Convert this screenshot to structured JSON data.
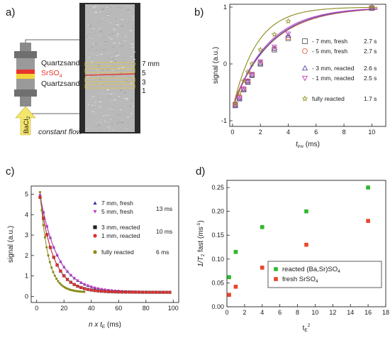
{
  "panel_a": {
    "letter": "a)",
    "top_label": "Quartzsand",
    "middle_label": "SrSO",
    "middle_sub": "4",
    "bottom_label": "Quartzsand",
    "flow_reagent": "BaCl",
    "flow_reagent_sub": "2",
    "flow_label": "constant flow",
    "depth_labels": [
      "7 mm",
      "5",
      "3",
      "1"
    ],
    "colors": {
      "srso4": "#e8352b",
      "yellow": "#f1d53a",
      "arrow": "#f3e66a",
      "pipe": "#8a8a8a"
    }
  },
  "chart_data": [
    {
      "panel": "b)",
      "type": "line",
      "xlabel": "t",
      "xlabel_sub": "inv",
      "xlabel_unit": " (ms)",
      "ylabel": "signal (a.u.)",
      "xlim": [
        -0.2,
        11
      ],
      "ylim": [
        -1.1,
        1.05
      ],
      "xticks": [
        0,
        2,
        4,
        6,
        8,
        10
      ],
      "yticks": [
        -1,
        0,
        1
      ],
      "series": [
        {
          "name": "- 7 mm, fresh",
          "tau": "2.7 s",
          "marker": "square",
          "color": "#555555",
          "fit": {
            "T": 2.7,
            "A": 1.75,
            "B": 1.0
          },
          "points": [
            [
              0.2,
              -0.72
            ],
            [
              0.5,
              -0.6
            ],
            [
              0.8,
              -0.45
            ],
            [
              1.1,
              -0.32
            ],
            [
              1.4,
              -0.2
            ],
            [
              2.0,
              0.0
            ],
            [
              3.0,
              0.25
            ],
            [
              4.0,
              0.45
            ],
            [
              10.0,
              0.98
            ]
          ]
        },
        {
          "name": "- 5 mm, fresh",
          "tau": "2.7 s",
          "marker": "circle",
          "color": "#e0603a",
          "fit": {
            "T": 2.7,
            "A": 1.73,
            "B": 1.0
          },
          "points": [
            [
              0.2,
              -0.7
            ],
            [
              0.5,
              -0.58
            ],
            [
              0.8,
              -0.44
            ],
            [
              1.1,
              -0.3
            ],
            [
              1.4,
              -0.19
            ],
            [
              2.0,
              0.02
            ],
            [
              3.0,
              0.27
            ],
            [
              4.0,
              0.47
            ],
            [
              10.0,
              0.99
            ]
          ]
        },
        {
          "name": "- 3 mm, reacted",
          "tau": "2.6 s",
          "marker": "triangle-up",
          "color": "#5a4fb0",
          "fit": {
            "T": 2.6,
            "A": 1.78,
            "B": 1.0
          },
          "points": [
            [
              0.2,
              -0.74
            ],
            [
              0.5,
              -0.62
            ],
            [
              0.8,
              -0.46
            ],
            [
              1.1,
              -0.32
            ],
            [
              1.4,
              -0.2
            ],
            [
              2.0,
              0.01
            ],
            [
              3.0,
              0.27
            ],
            [
              4.0,
              0.5
            ],
            [
              10.0,
              0.99
            ]
          ]
        },
        {
          "name": "- 1 mm, reacted",
          "tau": "2.5 s",
          "marker": "triangle-down",
          "color": "#c040c0",
          "fit": {
            "T": 2.5,
            "A": 1.78,
            "B": 1.0
          },
          "points": [
            [
              0.2,
              -0.73
            ],
            [
              0.5,
              -0.6
            ],
            [
              0.8,
              -0.44
            ],
            [
              1.1,
              -0.3
            ],
            [
              1.4,
              -0.18
            ],
            [
              2.0,
              0.04
            ],
            [
              3.0,
              0.3
            ],
            [
              4.0,
              0.53
            ],
            [
              10.0,
              0.99
            ]
          ]
        },
        {
          "name": "fully reacted",
          "tau": "1.7 s",
          "marker": "star",
          "color": "#8a8a1a",
          "fit": {
            "T": 1.7,
            "A": 1.8,
            "B": 1.0
          },
          "points": [
            [
              0.2,
              -0.7
            ],
            [
              0.5,
              -0.5
            ],
            [
              0.8,
              -0.3
            ],
            [
              1.1,
              -0.14
            ],
            [
              1.4,
              0.0
            ],
            [
              2.0,
              0.25
            ],
            [
              3.0,
              0.52
            ],
            [
              4.0,
              0.75
            ],
            [
              10.0,
              1.0
            ]
          ]
        }
      ]
    },
    {
      "panel": "c)",
      "type": "line",
      "xlabel": "n x t",
      "xlabel_sub": "E",
      "xlabel_unit": " (ms)",
      "ylabel": "signal (a.u.)",
      "xlim": [
        -4,
        104
      ],
      "ylim": [
        -0.3,
        5.4
      ],
      "xticks": [
        0,
        20,
        40,
        60,
        80,
        100
      ],
      "yticks": [
        0,
        1,
        2,
        3,
        4,
        5
      ],
      "series": [
        {
          "name": "7 mm, fresh",
          "group_tau": "13 ms",
          "marker": "triangle-up",
          "color": "#3a2fa0",
          "fit": {
            "A": 4.75,
            "T": 13,
            "C": 0.2
          },
          "x_start": 2.5,
          "x_end": 98,
          "step": 2.5
        },
        {
          "name": "5 mm, fresh",
          "group_tau": "",
          "marker": "triangle-down",
          "color": "#c040c0",
          "fit": {
            "A": 4.75,
            "T": 13,
            "C": 0.2
          },
          "x_start": 2.5,
          "x_end": 98,
          "step": 2.5
        },
        {
          "name": "3 mm, reacted",
          "group_tau": "10 ms",
          "marker": "square",
          "color": "#222222",
          "fit": {
            "A": 4.65,
            "T": 10,
            "C": 0.2
          },
          "x_start": 2.5,
          "x_end": 98,
          "step": 2.5
        },
        {
          "name": "1 mm, reacted",
          "group_tau": "",
          "marker": "circle",
          "color": "#e03030",
          "fit": {
            "A": 4.65,
            "T": 10,
            "C": 0.2
          },
          "x_start": 2.5,
          "x_end": 98,
          "step": 2.5
        },
        {
          "name": "fully reacted",
          "group_tau": "6 ms",
          "marker": "circle-small",
          "color": "#8a8a1a",
          "fit": {
            "A": 4.9,
            "T": 6,
            "C": 0.2
          },
          "x_start": 2.5,
          "x_end": 35,
          "step": 1.2
        }
      ]
    },
    {
      "panel": "d)",
      "type": "scatter",
      "xlabel": "t",
      "xlabel_sub": "E",
      "xlabel_sup": "2",
      "ylabel": "1/T",
      "ylabel_sub": "2",
      "ylabel_rest": " fast (ms",
      "ylabel_sup": "-1",
      "ylabel_close": ")",
      "xlim": [
        0,
        18
      ],
      "ylim": [
        0,
        0.265
      ],
      "xticks": [
        0,
        2,
        4,
        6,
        8,
        10,
        12,
        14,
        16,
        18
      ],
      "yticks": [
        0.0,
        0.05,
        0.1,
        0.15,
        0.2,
        0.25
      ],
      "ytick_labels": [
        "0.00",
        "0.05",
        "0.10",
        "0.15",
        "0.20",
        "0.25"
      ],
      "series": [
        {
          "name": "reacted (Ba,Sr)SO",
          "name_sub": "4",
          "marker": "square",
          "color": "#2db82d",
          "points": [
            [
              0.25,
              0.062
            ],
            [
              1.0,
              0.115
            ],
            [
              4.0,
              0.167
            ],
            [
              9.0,
              0.2
            ],
            [
              16.0,
              0.25
            ]
          ]
        },
        {
          "name": "fresh SrSO",
          "name_sub": "4",
          "marker": "square",
          "color": "#e8462a",
          "points": [
            [
              0.25,
              0.025
            ],
            [
              1.0,
              0.042
            ],
            [
              4.0,
              0.082
            ],
            [
              9.0,
              0.13
            ],
            [
              16.0,
              0.18
            ]
          ]
        }
      ]
    }
  ]
}
